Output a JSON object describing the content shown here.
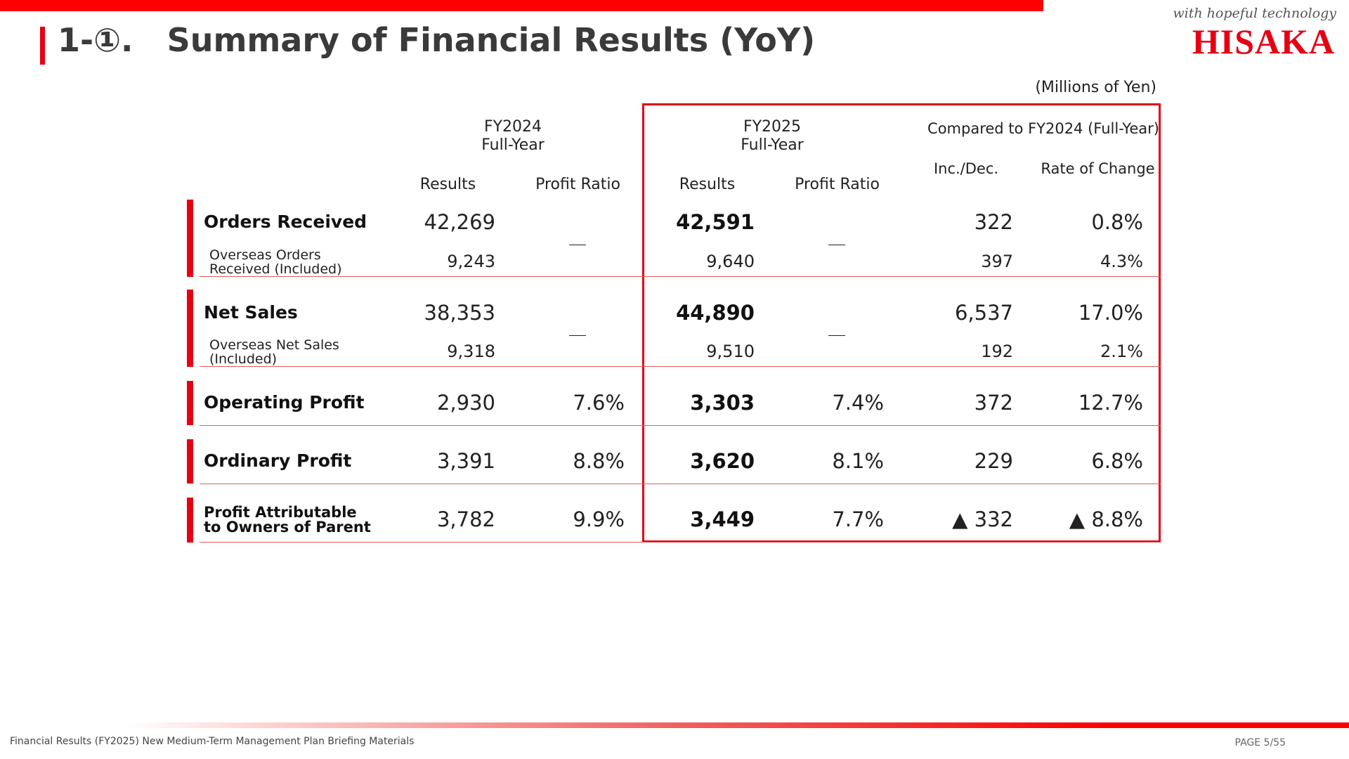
{
  "header": {
    "title": "1-①.   Summary of Financial Results (YoY)",
    "tagline": "with hopeful technology",
    "logo": "HISAKA"
  },
  "units": "(Millions of Yen)",
  "columns": {
    "fy2024_line1": "FY2024",
    "fy2024_line2": "Full-Year",
    "fy2025_line1": "FY2025",
    "fy2025_line2": "Full-Year",
    "compare": "Compared to FY2024 (Full-Year)",
    "results": "Results",
    "profit_ratio": "Profit Ratio",
    "inc_dec": "Inc./Dec.",
    "rate_of_change": "Rate of Change"
  },
  "rows": {
    "orders": {
      "label": "Orders Received",
      "fy2024": "42,269",
      "fy2024_ratio": "＿",
      "fy2025": "42,591",
      "fy2025_ratio": "＿",
      "inc_dec": "322",
      "rate": "0.8%",
      "sub_label_1": "Overseas Orders",
      "sub_label_2": "Received (Included)",
      "sub_fy2024": "9,243",
      "sub_fy2025": "9,640",
      "sub_inc_dec": "397",
      "sub_rate": "4.3%"
    },
    "net_sales": {
      "label": "Net Sales",
      "fy2024": "38,353",
      "fy2024_ratio": "＿",
      "fy2025": "44,890",
      "fy2025_ratio": "＿",
      "inc_dec": "6,537",
      "rate": "17.0%",
      "sub_label_1": "Overseas Net Sales",
      "sub_label_2": "(Included)",
      "sub_fy2024": "9,318",
      "sub_fy2025": "9,510",
      "sub_inc_dec": "192",
      "sub_rate": "2.1%"
    },
    "operating_profit": {
      "label": "Operating Profit",
      "fy2024": "2,930",
      "fy2024_ratio": "7.6%",
      "fy2025": "3,303",
      "fy2025_ratio": "7.4%",
      "inc_dec": "372",
      "rate": "12.7%"
    },
    "ordinary_profit": {
      "label": "Ordinary Profit",
      "fy2024": "3,391",
      "fy2024_ratio": "8.8%",
      "fy2025": "3,620",
      "fy2025_ratio": "8.1%",
      "inc_dec": "229",
      "rate": "6.8%"
    },
    "profit_owners": {
      "label_1": "Profit Attributable",
      "label_2": "to Owners of Parent",
      "fy2024": "3,782",
      "fy2024_ratio": "9.9%",
      "fy2025": "3,449",
      "fy2025_ratio": "7.7%",
      "inc_dec": "▲ 332",
      "rate": "▲ 8.8%"
    }
  },
  "footer": {
    "text": "Financial Results (FY2025) New Medium-Term Management Plan Briefing Materials",
    "page": "PAGE 5/55"
  },
  "colors": {
    "accent": "#e60012",
    "bar": "#ff0000"
  }
}
